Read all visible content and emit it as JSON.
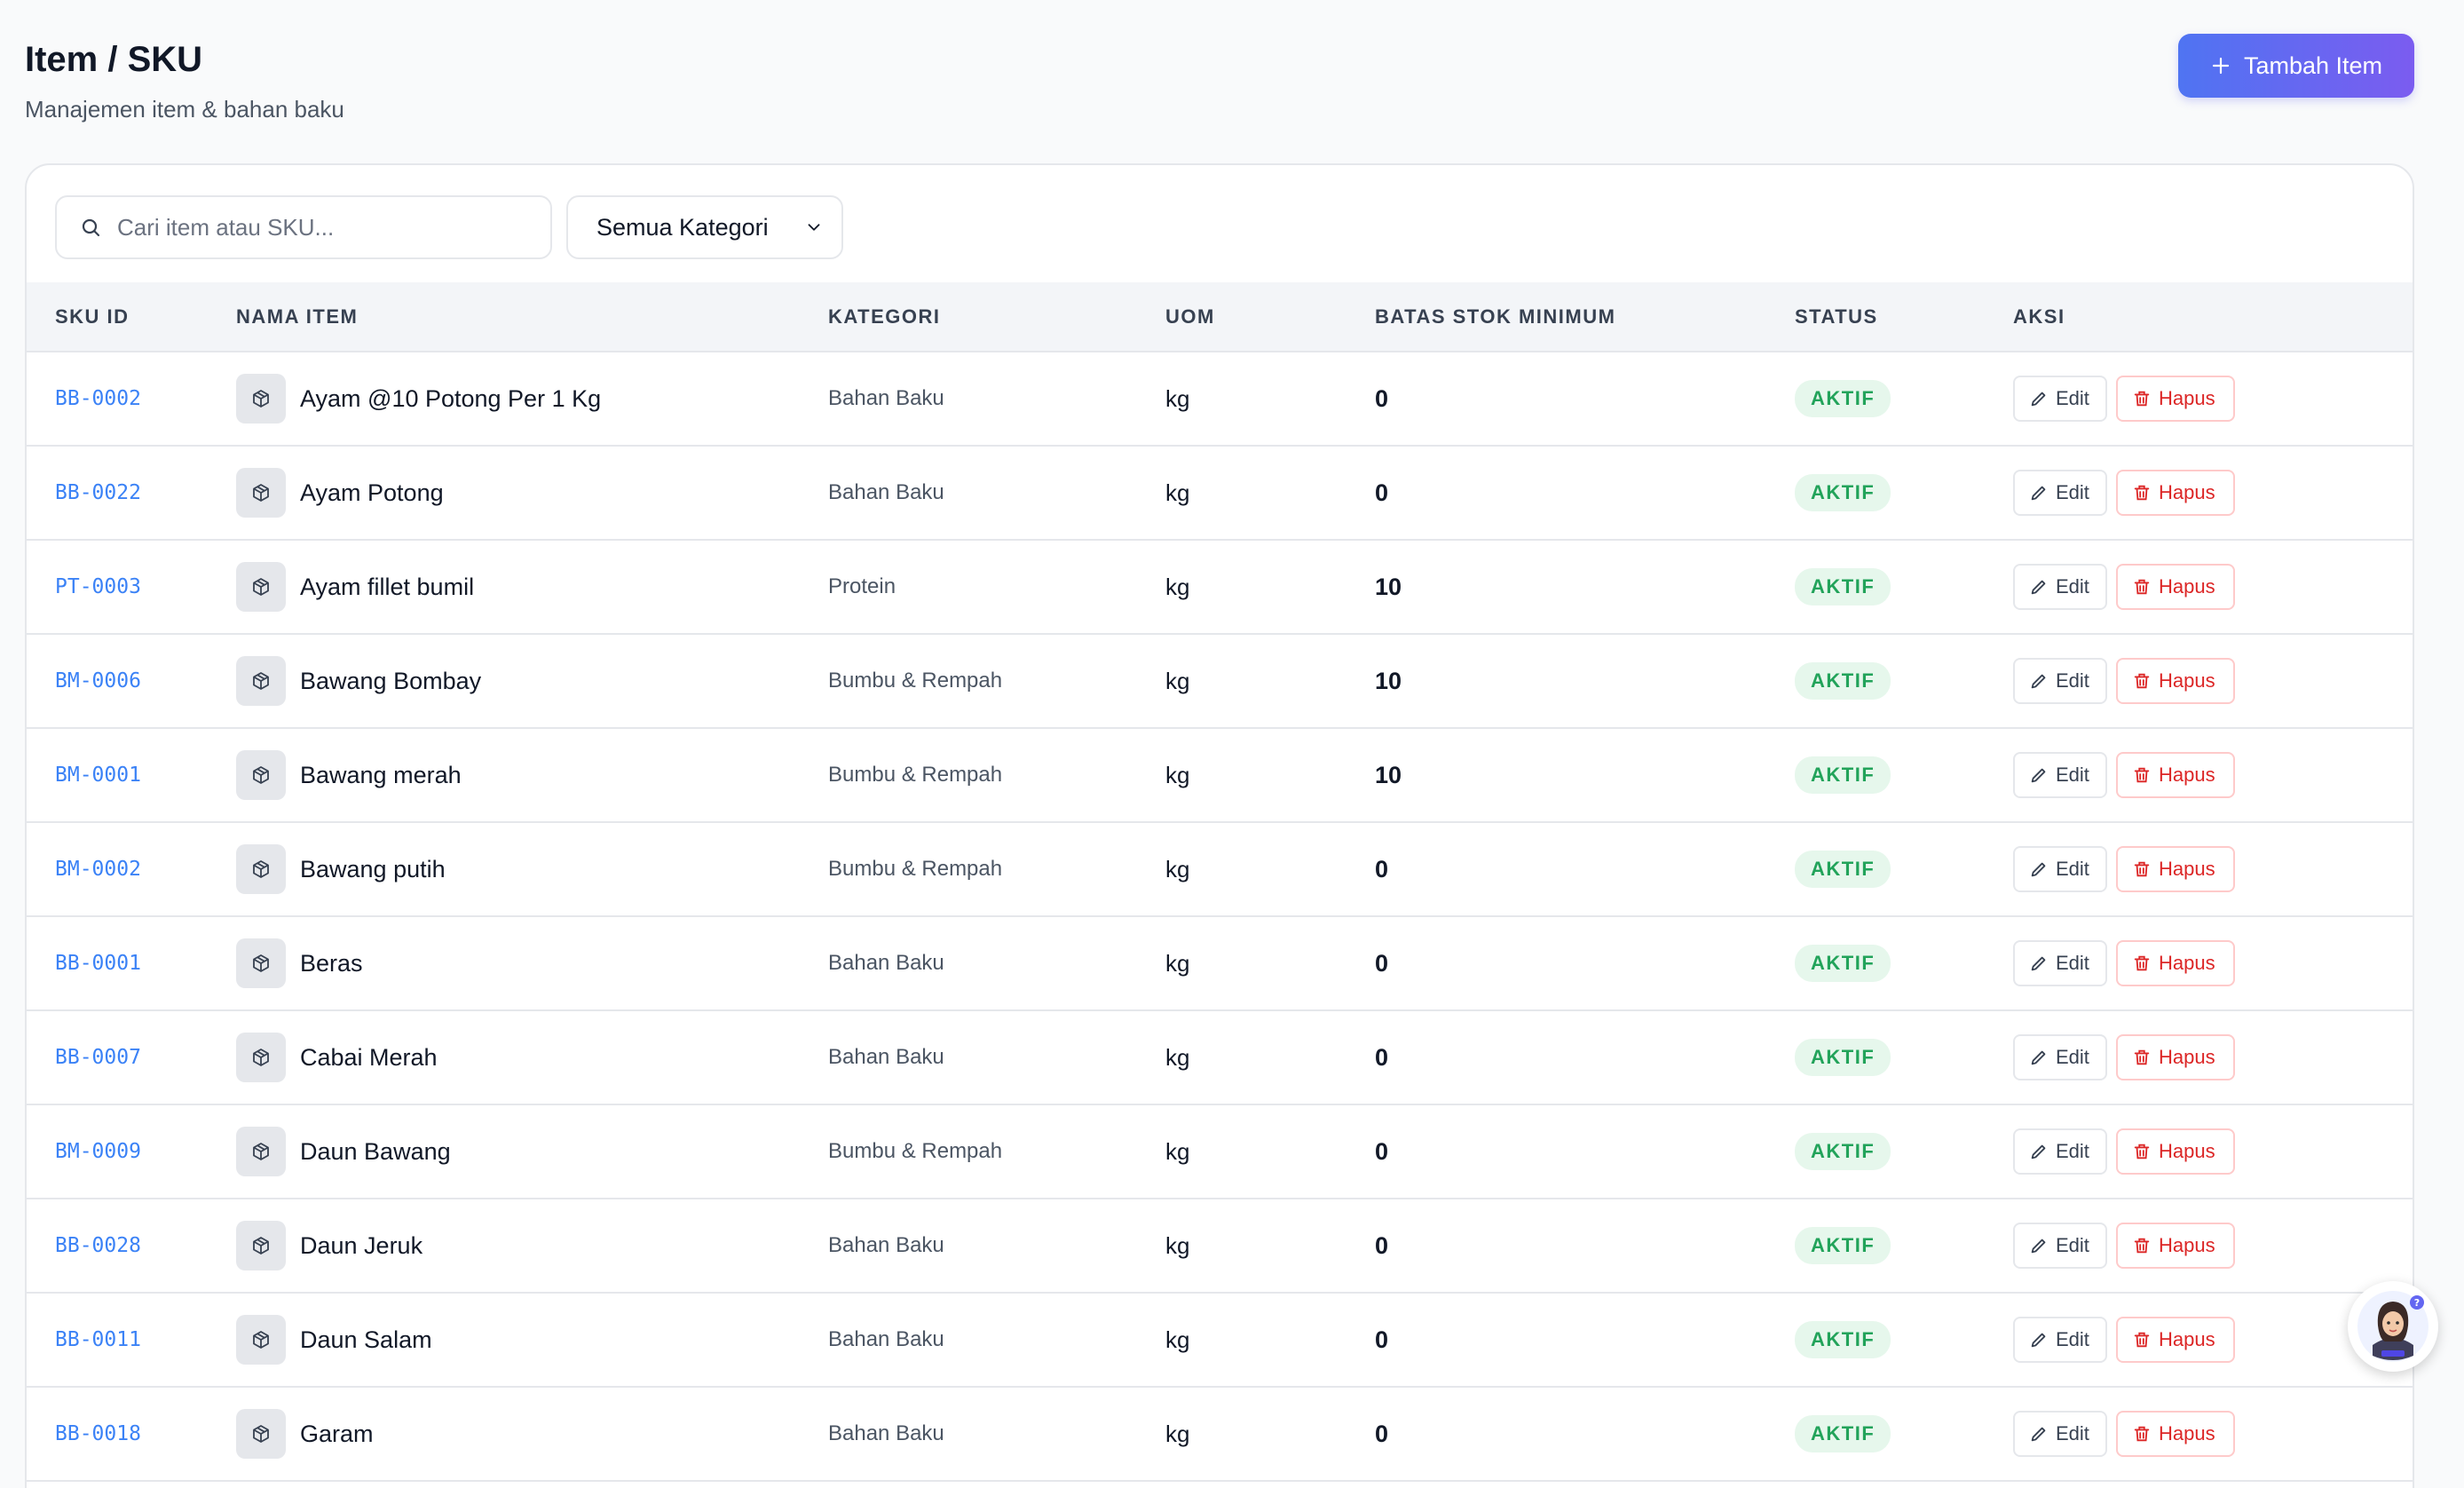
{
  "header": {
    "title": "Item / SKU",
    "subtitle": "Manajemen item & bahan baku",
    "add_button_label": "Tambah Item"
  },
  "toolbar": {
    "search_placeholder": "Cari item atau SKU...",
    "category_selected": "Semua Kategori"
  },
  "table": {
    "columns": [
      "SKU ID",
      "NAMA ITEM",
      "KATEGORI",
      "UOM",
      "BATAS STOK MINIMUM",
      "STATUS",
      "AKSI"
    ],
    "edit_label": "Edit",
    "delete_label": "Hapus",
    "rows": [
      {
        "sku": "BB-0002",
        "name": "Ayam @10 Potong Per 1 Kg",
        "category": "Bahan Baku",
        "uom": "kg",
        "min_stock": "0",
        "status": "AKTIF"
      },
      {
        "sku": "BB-0022",
        "name": "Ayam Potong",
        "category": "Bahan Baku",
        "uom": "kg",
        "min_stock": "0",
        "status": "AKTIF"
      },
      {
        "sku": "PT-0003",
        "name": "Ayam fillet bumil",
        "category": "Protein",
        "uom": "kg",
        "min_stock": "10",
        "status": "AKTIF"
      },
      {
        "sku": "BM-0006",
        "name": "Bawang Bombay",
        "category": "Bumbu & Rempah",
        "uom": "kg",
        "min_stock": "10",
        "status": "AKTIF"
      },
      {
        "sku": "BM-0001",
        "name": "Bawang merah",
        "category": "Bumbu & Rempah",
        "uom": "kg",
        "min_stock": "10",
        "status": "AKTIF"
      },
      {
        "sku": "BM-0002",
        "name": "Bawang putih",
        "category": "Bumbu & Rempah",
        "uom": "kg",
        "min_stock": "0",
        "status": "AKTIF"
      },
      {
        "sku": "BB-0001",
        "name": "Beras",
        "category": "Bahan Baku",
        "uom": "kg",
        "min_stock": "0",
        "status": "AKTIF"
      },
      {
        "sku": "BB-0007",
        "name": "Cabai Merah",
        "category": "Bahan Baku",
        "uom": "kg",
        "min_stock": "0",
        "status": "AKTIF"
      },
      {
        "sku": "BM-0009",
        "name": "Daun Bawang",
        "category": "Bumbu & Rempah",
        "uom": "kg",
        "min_stock": "0",
        "status": "AKTIF"
      },
      {
        "sku": "BB-0028",
        "name": "Daun Jeruk",
        "category": "Bahan Baku",
        "uom": "kg",
        "min_stock": "0",
        "status": "AKTIF"
      },
      {
        "sku": "BB-0011",
        "name": "Daun Salam",
        "category": "Bahan Baku",
        "uom": "kg",
        "min_stock": "0",
        "status": "AKTIF"
      },
      {
        "sku": "BB-0018",
        "name": "Garam",
        "category": "Bahan Baku",
        "uom": "kg",
        "min_stock": "0",
        "status": "AKTIF"
      }
    ]
  },
  "icons": {
    "search": "search-icon",
    "chevron": "chevron-down-icon",
    "item": "package-icon",
    "edit": "pencil-icon",
    "delete": "trash-icon",
    "helpdesk": "helpdesk-avatar-icon"
  },
  "colors": {
    "accent_start": "#4f74f2",
    "accent_end": "#7b5cf0",
    "sku_link": "#3b82f6",
    "status_active": "#22a35a",
    "delete": "#dc2626"
  }
}
